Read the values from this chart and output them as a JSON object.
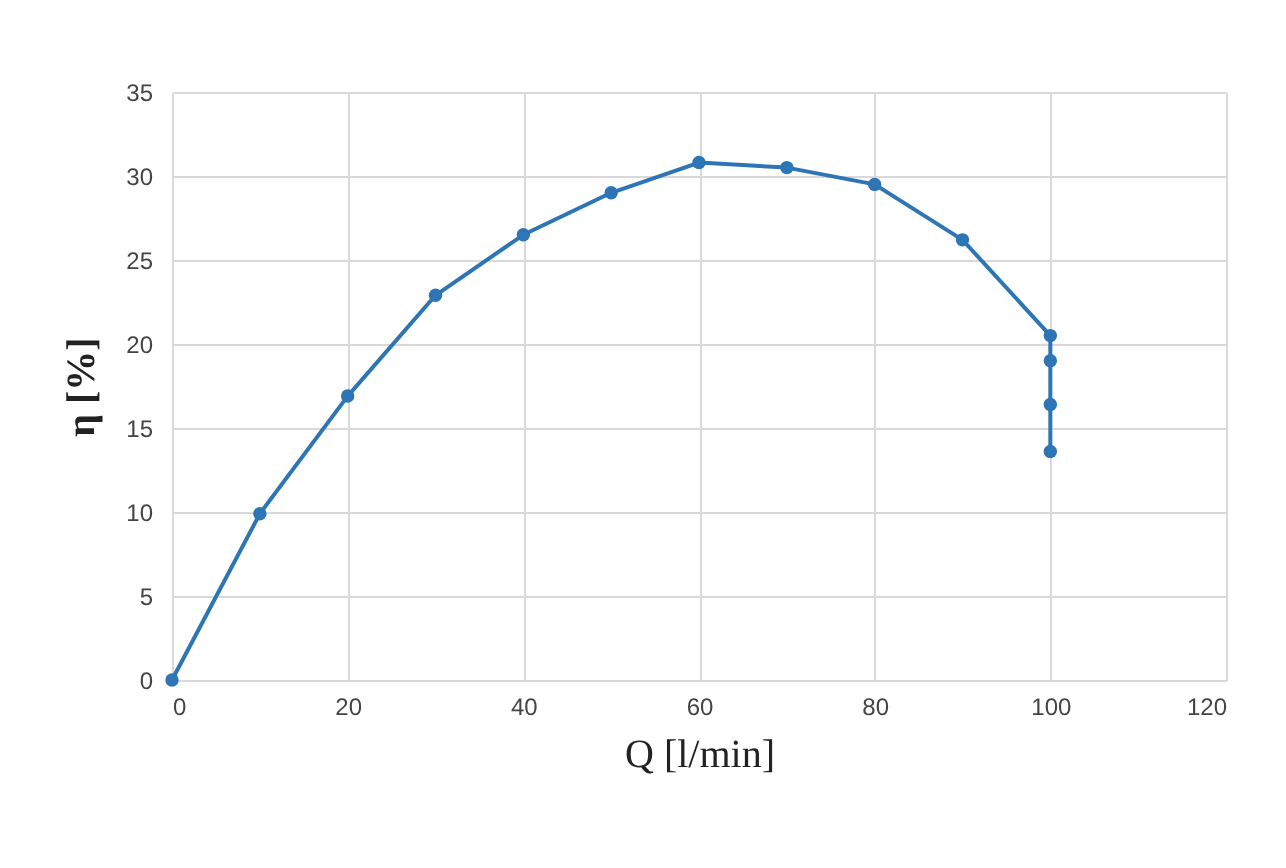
{
  "chart_data": {
    "type": "line",
    "xlabel": "Q [l/min]",
    "ylabel": "η [%]",
    "x": [
      0,
      10,
      20,
      30,
      40,
      50,
      60,
      70,
      80,
      90,
      100,
      100,
      100,
      100
    ],
    "series": [
      {
        "color": "#2e75b6",
        "values": [
          0,
          9.9,
          16.9,
          22.9,
          26.5,
          29.0,
          30.8,
          30.5,
          29.5,
          26.2,
          20.5,
          19.0,
          16.4,
          13.6
        ]
      }
    ],
    "xlim": [
      0,
      120
    ],
    "xticks": [
      0,
      20,
      40,
      60,
      80,
      100,
      120
    ],
    "ylim": [
      0,
      35
    ],
    "yticks": [
      0,
      5,
      10,
      15,
      20,
      25,
      30,
      35
    ],
    "grid": true,
    "marker": "circle",
    "line_style": "solid"
  }
}
